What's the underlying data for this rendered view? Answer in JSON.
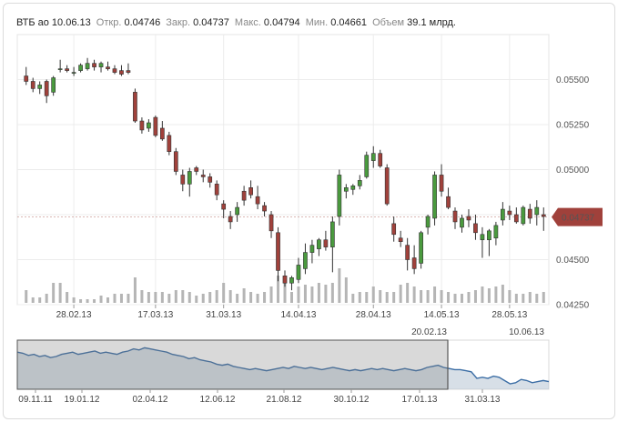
{
  "header": {
    "ticker": "ВТБ ао",
    "date": "10.06.13",
    "open_label": "Откр.",
    "open": "0.04746",
    "close_label": "Закр.",
    "close": "0.04737",
    "high_label": "Макс.",
    "high": "0.04794",
    "low_label": "Мин.",
    "low": "0.04661",
    "volume_label": "Объем",
    "volume": "39.1 млрд."
  },
  "colors": {
    "up": "#4a9a3e",
    "down": "#a0413b",
    "volume": "#b5b5b5",
    "price_tag": "#a0413b",
    "navigator_line": "#3c6ea5",
    "navigator_fill": "#b7c4d4"
  },
  "current_price_label": "0.04737",
  "chart_data": [
    {
      "type": "candlestick",
      "title": "",
      "ylim": [
        0.0425,
        0.0575
      ],
      "y_ticks": [
        "0.05500",
        "0.05250",
        "0.05000",
        "0.04750",
        "0.04500",
        "0.04250"
      ],
      "x_ticks": [
        "28.02.13",
        "17.03.13",
        "31.03.13",
        "14.04.13",
        "28.04.13",
        "14.05.13",
        "28.05.13"
      ],
      "range_start_label": "20.02.13",
      "range_end_label": "10.06.13",
      "candles": [
        [
          0.0552,
          0.0557,
          0.0547,
          0.0549
        ],
        [
          0.0549,
          0.0551,
          0.0543,
          0.0545
        ],
        [
          0.0545,
          0.0549,
          0.0542,
          0.0547
        ],
        [
          0.0549,
          0.055,
          0.0537,
          0.0541
        ],
        [
          0.0543,
          0.0552,
          0.0541,
          0.0551
        ],
        [
          0.0556,
          0.0561,
          0.0554,
          0.0556
        ],
        [
          0.0556,
          0.0558,
          0.0554,
          0.0555
        ],
        [
          0.0554,
          0.0557,
          0.0552,
          0.0554
        ],
        [
          0.0555,
          0.0559,
          0.0554,
          0.0558
        ],
        [
          0.0556,
          0.0562,
          0.0555,
          0.0559
        ],
        [
          0.0559,
          0.0561,
          0.0555,
          0.0557
        ],
        [
          0.0557,
          0.056,
          0.0554,
          0.0559
        ],
        [
          0.0557,
          0.056,
          0.0555,
          0.0556
        ],
        [
          0.0556,
          0.0558,
          0.0553,
          0.0554
        ],
        [
          0.0555,
          0.0558,
          0.0552,
          0.0553
        ],
        [
          0.0555,
          0.0559,
          0.0553,
          0.0554
        ],
        [
          0.0543,
          0.0545,
          0.0526,
          0.0527
        ],
        [
          0.0527,
          0.0529,
          0.052,
          0.0522
        ],
        [
          0.0523,
          0.0528,
          0.0521,
          0.0526
        ],
        [
          0.0529,
          0.053,
          0.0518,
          0.0519
        ],
        [
          0.0523,
          0.0527,
          0.0516,
          0.0517
        ],
        [
          0.0519,
          0.0521,
          0.0508,
          0.051
        ],
        [
          0.051,
          0.0512,
          0.0497,
          0.0499
        ],
        [
          0.0497,
          0.05,
          0.0488,
          0.0492
        ],
        [
          0.0492,
          0.0501,
          0.0485,
          0.0499
        ],
        [
          0.0501,
          0.0502,
          0.0497,
          0.0499
        ],
        [
          0.0497,
          0.05,
          0.0493,
          0.0496
        ],
        [
          0.0496,
          0.0498,
          0.049,
          0.0493
        ],
        [
          0.0492,
          0.0494,
          0.0483,
          0.0486
        ],
        [
          0.0481,
          0.0483,
          0.0473,
          0.0478
        ],
        [
          0.0474,
          0.0477,
          0.0467,
          0.0471
        ],
        [
          0.0475,
          0.0482,
          0.0471,
          0.0479
        ],
        [
          0.0488,
          0.0491,
          0.048,
          0.0483
        ],
        [
          0.049,
          0.0494,
          0.0484,
          0.0486
        ],
        [
          0.0485,
          0.0491,
          0.0478,
          0.0481
        ],
        [
          0.048,
          0.0482,
          0.0474,
          0.0477
        ],
        [
          0.0475,
          0.0477,
          0.0462,
          0.0466
        ],
        [
          0.0465,
          0.0468,
          0.0438,
          0.0444
        ],
        [
          0.0441,
          0.0444,
          0.0435,
          0.0437
        ],
        [
          0.0437,
          0.0441,
          0.0433,
          0.044
        ],
        [
          0.0439,
          0.0451,
          0.0437,
          0.0447
        ],
        [
          0.0445,
          0.0459,
          0.0442,
          0.0454
        ],
        [
          0.0454,
          0.0461,
          0.0448,
          0.0458
        ],
        [
          0.0456,
          0.0462,
          0.0452,
          0.0461
        ],
        [
          0.0461,
          0.0466,
          0.0455,
          0.0457
        ],
        [
          0.0457,
          0.0474,
          0.0443,
          0.0471
        ],
        [
          0.0474,
          0.05,
          0.0469,
          0.0497
        ],
        [
          0.0488,
          0.0492,
          0.0484,
          0.049
        ],
        [
          0.0489,
          0.0492,
          0.0486,
          0.0491
        ],
        [
          0.0491,
          0.0497,
          0.0489,
          0.0494
        ],
        [
          0.0496,
          0.051,
          0.0495,
          0.0508
        ],
        [
          0.0505,
          0.0513,
          0.0501,
          0.0509
        ],
        [
          0.0509,
          0.0511,
          0.0501,
          0.0502
        ],
        [
          0.0501,
          0.0503,
          0.048,
          0.0481
        ],
        [
          0.047,
          0.0474,
          0.046,
          0.0464
        ],
        [
          0.0462,
          0.0466,
          0.0457,
          0.046
        ],
        [
          0.0458,
          0.0462,
          0.0444,
          0.045
        ],
        [
          0.0451,
          0.0458,
          0.0442,
          0.0445
        ],
        [
          0.0448,
          0.0466,
          0.0445,
          0.0465
        ],
        [
          0.0468,
          0.0475,
          0.0464,
          0.0474
        ],
        [
          0.0473,
          0.0499,
          0.0469,
          0.0497
        ],
        [
          0.0497,
          0.0503,
          0.0485,
          0.0488
        ],
        [
          0.0485,
          0.049,
          0.0478,
          0.0479
        ],
        [
          0.0477,
          0.0479,
          0.0467,
          0.0471
        ],
        [
          0.0468,
          0.0475,
          0.0465,
          0.0473
        ],
        [
          0.0474,
          0.0478,
          0.0468,
          0.0472
        ],
        [
          0.047,
          0.0475,
          0.0461,
          0.0465
        ],
        [
          0.0461,
          0.0468,
          0.0451,
          0.0464
        ],
        [
          0.0461,
          0.0467,
          0.0452,
          0.0466
        ],
        [
          0.0462,
          0.0471,
          0.0458,
          0.0469
        ],
        [
          0.0472,
          0.0482,
          0.0469,
          0.0478
        ],
        [
          0.0477,
          0.048,
          0.0472,
          0.0475
        ],
        [
          0.0475,
          0.0479,
          0.047,
          0.0471
        ],
        [
          0.047,
          0.048,
          0.0469,
          0.0479
        ],
        [
          0.0478,
          0.0481,
          0.047,
          0.0473
        ],
        [
          0.0475,
          0.0483,
          0.0469,
          0.0479
        ],
        [
          0.0475,
          0.0479,
          0.0466,
          0.0474
        ]
      ],
      "volume": [
        0.35,
        0.15,
        0.15,
        0.25,
        0.55,
        0.55,
        0.3,
        0.15,
        0.1,
        0.1,
        0.1,
        0.2,
        0.15,
        0.25,
        0.25,
        0.25,
        0.7,
        0.35,
        0.3,
        0.3,
        0.3,
        0.25,
        0.35,
        0.35,
        0.3,
        0.2,
        0.25,
        0.3,
        0.35,
        0.55,
        0.35,
        0.25,
        0.4,
        0.3,
        0.25,
        0.3,
        0.45,
        0.75,
        0.55,
        0.3,
        0.45,
        0.5,
        0.45,
        0.55,
        0.5,
        0.55,
        0.95,
        0.7,
        0.25,
        0.3,
        0.3,
        0.45,
        0.35,
        0.3,
        0.3,
        0.5,
        0.55,
        0.45,
        0.35,
        0.35,
        0.45,
        0.35,
        0.3,
        0.25,
        0.25,
        0.3,
        0.35,
        0.45,
        0.4,
        0.45,
        0.5,
        0.35,
        0.25,
        0.25,
        0.3,
        0.25,
        0.3
      ]
    },
    {
      "type": "area",
      "title": "",
      "x_ticks": [
        "09.11.11",
        "19.01.12",
        "02.04.12",
        "12.06.12",
        "21.08.12",
        "30.10.12",
        "17.01.13",
        "31.03.13"
      ],
      "values": [
        0.074,
        0.073,
        0.071,
        0.072,
        0.07,
        0.071,
        0.069,
        0.07,
        0.072,
        0.073,
        0.074,
        0.072,
        0.073,
        0.074,
        0.075,
        0.073,
        0.074,
        0.073,
        0.072,
        0.074,
        0.075,
        0.077,
        0.076,
        0.078,
        0.077,
        0.076,
        0.075,
        0.074,
        0.072,
        0.071,
        0.07,
        0.068,
        0.069,
        0.067,
        0.066,
        0.065,
        0.063,
        0.062,
        0.063,
        0.061,
        0.06,
        0.059,
        0.058,
        0.059,
        0.058,
        0.057,
        0.058,
        0.059,
        0.06,
        0.059,
        0.061,
        0.06,
        0.059,
        0.06,
        0.059,
        0.058,
        0.059,
        0.06,
        0.059,
        0.058,
        0.057,
        0.058,
        0.057,
        0.058,
        0.059,
        0.058,
        0.059,
        0.058,
        0.057,
        0.058,
        0.059,
        0.058,
        0.057,
        0.058,
        0.06,
        0.061,
        0.062,
        0.06,
        0.059,
        0.058,
        0.058,
        0.057,
        0.056,
        0.05,
        0.051,
        0.05,
        0.052,
        0.051,
        0.048,
        0.045,
        0.046,
        0.049,
        0.048,
        0.046,
        0.047,
        0.048,
        0.047
      ],
      "ylim": [
        0.04,
        0.085
      ]
    }
  ]
}
